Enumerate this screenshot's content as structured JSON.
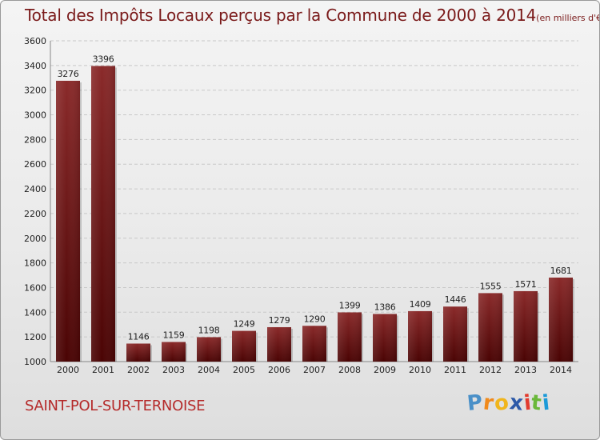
{
  "title": "Total des Impôts Locaux perçus par la Commune de 2000 à 2014",
  "subtitle": "(en milliers d'€)",
  "commune": "SAINT-POL-SUR-TERNOISE",
  "logo": {
    "letters": [
      "P",
      "r",
      "o",
      "x",
      "i",
      "t",
      "i"
    ],
    "colors": [
      "#4a90c8",
      "#f08a1c",
      "#f0b51c",
      "#2e5aa8",
      "#e23b2e",
      "#6ab83a",
      "#1c9ad8"
    ]
  },
  "colors": {
    "bar_top": "#8a2a2a",
    "bar_bottom": "#4a0404",
    "text": "#222222",
    "title": "#7a1a1a"
  },
  "chart_data": {
    "type": "bar",
    "title": "Total des Impôts Locaux perçus par la Commune de 2000 à 2014",
    "subtitle": "(en milliers d'€)",
    "categories": [
      "2000",
      "2001",
      "2002",
      "2003",
      "2004",
      "2005",
      "2006",
      "2007",
      "2008",
      "2009",
      "2010",
      "2011",
      "2012",
      "2013",
      "2014"
    ],
    "values": [
      3276,
      3396,
      1146,
      1159,
      1198,
      1249,
      1279,
      1290,
      1399,
      1386,
      1409,
      1446,
      1555,
      1571,
      1681
    ],
    "ylim": [
      1000,
      3600
    ],
    "yticks": [
      1000,
      1200,
      1400,
      1600,
      1800,
      2000,
      2200,
      2400,
      2600,
      2800,
      3000,
      3200,
      3400,
      3600
    ],
    "grid": true,
    "legend": "none"
  }
}
